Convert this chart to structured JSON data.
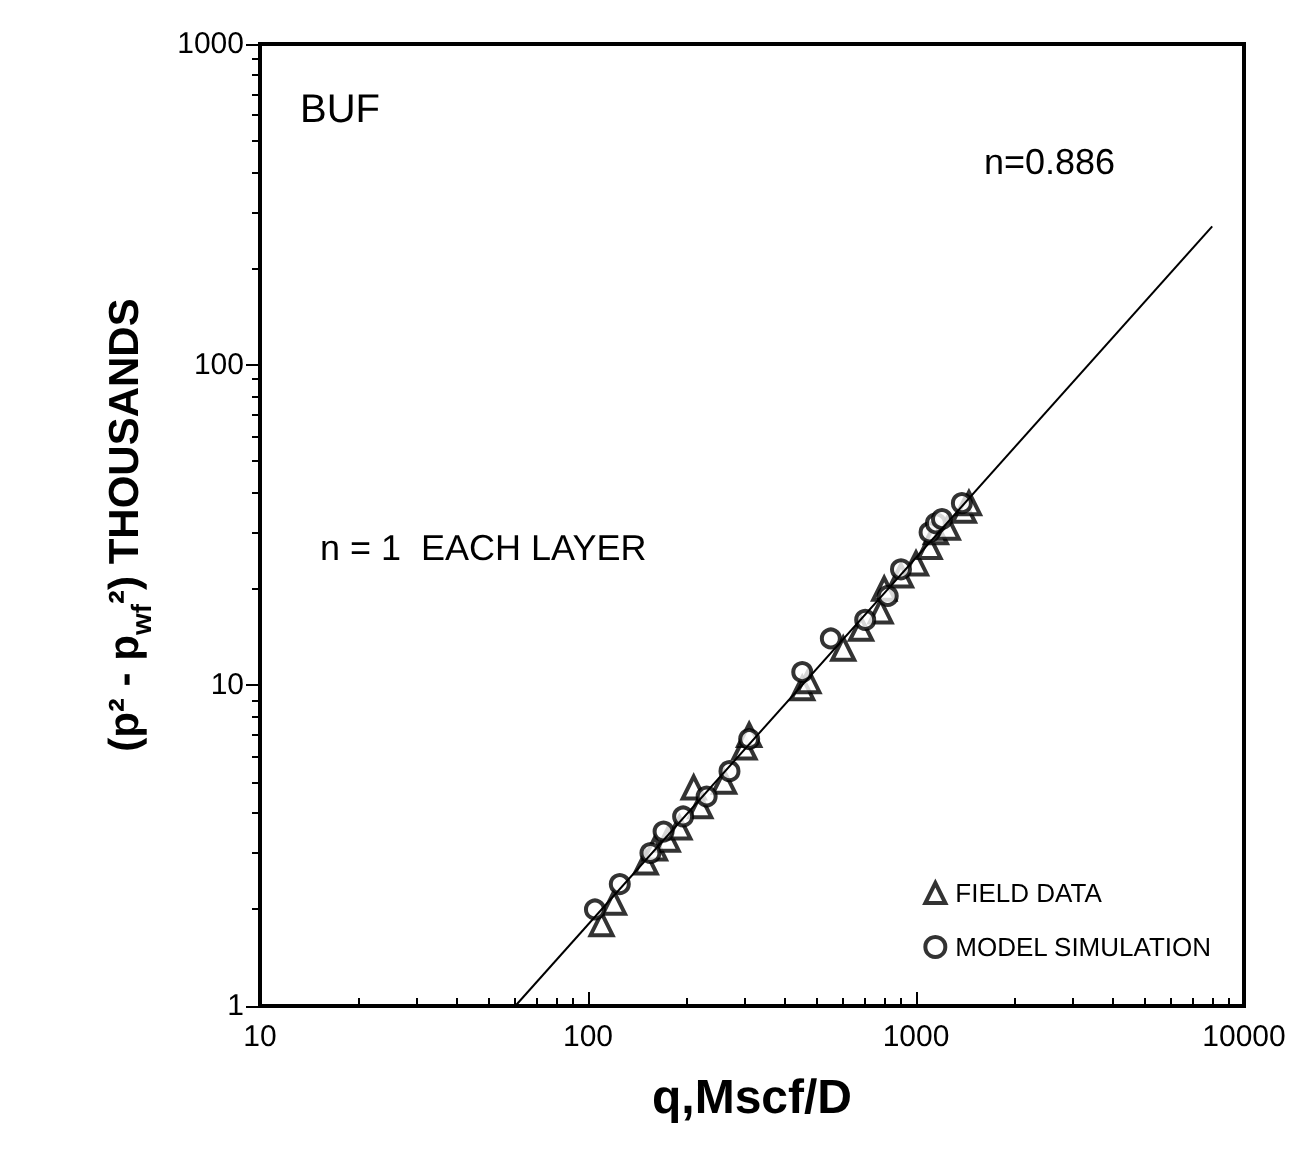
{
  "chart_data": {
    "type": "scatter",
    "xlabel": "q,Mscf/D",
    "ylabel": "(p² - p$_{wf}$²) THOUSANDS",
    "log": "xy",
    "xlim": [
      10,
      10000
    ],
    "xticks": [
      10,
      100,
      1000,
      10000
    ],
    "ylim": [
      1,
      1000
    ],
    "yticks": [
      1,
      10,
      100,
      1000
    ],
    "grid": false,
    "legend": "bottom right",
    "annotations": [
      "BUF",
      "n = 1  EACH LAYER",
      "n=0.886"
    ],
    "series": [
      {
        "name": "FIELD DATA",
        "marker": "triangle",
        "color": "#000000",
        "x": [
          110,
          120,
          150,
          160,
          175,
          190,
          210,
          220,
          260,
          300,
          310,
          450,
          470,
          600,
          680,
          780,
          800,
          900,
          1000,
          1100,
          1150,
          1250,
          1400,
          1450
        ],
        "values": [
          1.8,
          2.1,
          2.8,
          3.1,
          3.3,
          3.6,
          4.8,
          4.2,
          5.0,
          6.4,
          7.0,
          9.8,
          10.3,
          13,
          15,
          17,
          20,
          22,
          24,
          27,
          30,
          31,
          35,
          37
        ]
      },
      {
        "name": "MODEL SIMULATION",
        "marker": "circle",
        "color": "#000000",
        "x": [
          105,
          125,
          155,
          170,
          195,
          230,
          270,
          310,
          450,
          550,
          700,
          820,
          900,
          1100,
          1150,
          1200,
          1380
        ],
        "values": [
          2.0,
          2.4,
          3.0,
          3.5,
          3.9,
          4.5,
          5.4,
          6.8,
          11,
          14,
          16,
          19,
          23,
          30,
          32,
          33,
          37
        ]
      },
      {
        "type": "line",
        "marker": "none",
        "color": "#000000",
        "x": [
          60,
          8000
        ],
        "values": [
          1,
          270
        ]
      }
    ]
  }
}
